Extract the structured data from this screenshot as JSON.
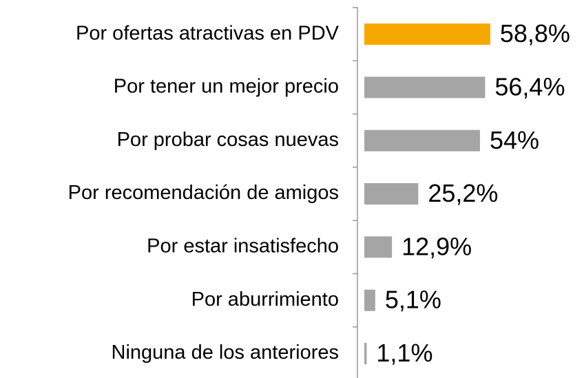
{
  "chart_data": {
    "type": "barh",
    "categories": [
      "Por ofertas atractivas en PDV",
      "Por tener un mejor precio",
      "Por probar cosas nuevas",
      "Por recomendación de amigos",
      "Por estar insatisfecho",
      "Por aburrimiento",
      "Ninguna de los anteriores"
    ],
    "values": [
      58.8,
      56.4,
      54,
      25.2,
      12.9,
      5.1,
      1.1
    ],
    "value_labels": [
      "58,8%",
      "56,4%",
      "54%",
      "25,2%",
      "12,9%",
      "5,1%",
      "1,1%"
    ],
    "colors": [
      "#f7a800",
      "#a5a5a5",
      "#a5a5a5",
      "#a5a5a5",
      "#a5a5a5",
      "#a5a5a5",
      "#a5a5a5"
    ],
    "xlim": [
      0,
      100
    ]
  }
}
